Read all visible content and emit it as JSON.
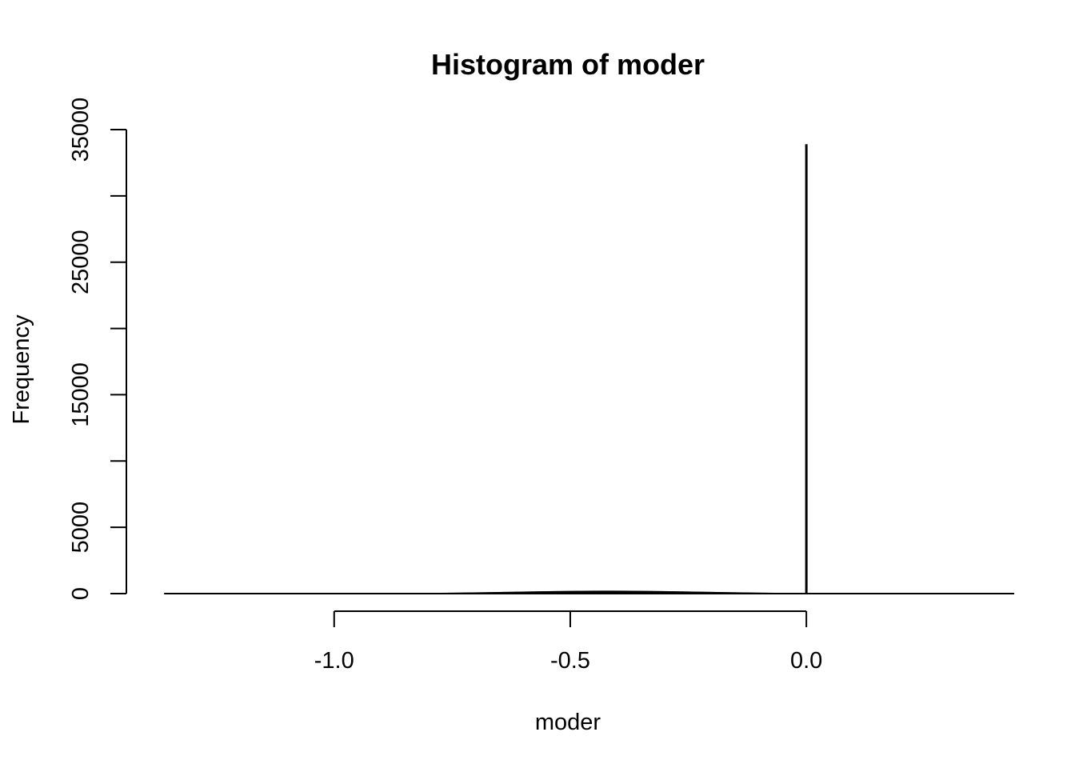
{
  "chart_data": {
    "type": "bar",
    "title": "Histogram of moder",
    "xlabel": "moder",
    "ylabel": "Frequency",
    "xlim": [
      -1.44,
      0.43
    ],
    "ylim": [
      0,
      35000
    ],
    "x_ticks": [
      -1.0,
      -0.5,
      0.0
    ],
    "x_tick_labels": [
      "-1.0",
      "-0.5",
      "0.0"
    ],
    "y_ticks": [
      0,
      5000,
      10000,
      15000,
      20000,
      25000,
      30000,
      35000
    ],
    "y_tick_labels": [
      "0",
      "5000",
      "",
      "15000",
      "",
      "25000",
      "",
      "35000"
    ],
    "bin_width": 0.002,
    "bins_range": [
      -1.36,
      0.44
    ],
    "bulk_curve": {
      "center": -0.42,
      "spread": 0.2,
      "peak": 200
    },
    "spike": {
      "x": 0.0,
      "count": 33900
    },
    "grid": false,
    "colors": {
      "bars": "#000000",
      "axes": "#000000",
      "background": "#ffffff"
    }
  }
}
